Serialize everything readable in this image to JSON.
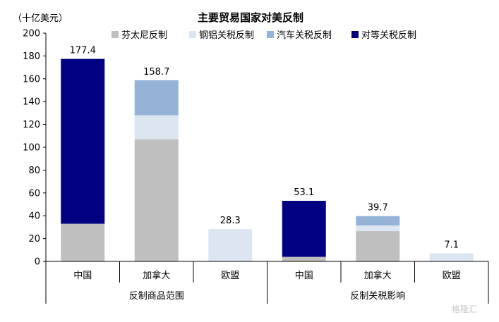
{
  "chart_data": {
    "type": "bar",
    "stacked": true,
    "title": "主要贸易国家对美反制",
    "ylabel": "（十亿美元）",
    "ylim": [
      0,
      200
    ],
    "yticks": [
      0,
      20,
      40,
      60,
      80,
      100,
      120,
      140,
      160,
      180,
      200
    ],
    "grid": false,
    "legend_position": "top",
    "groups": [
      "反制商品范围",
      "反制关税影响"
    ],
    "categories": [
      "中国",
      "加拿大",
      "欧盟",
      "中国",
      "加拿大",
      "欧盟"
    ],
    "group_of_category": [
      0,
      0,
      0,
      1,
      1,
      1
    ],
    "series": [
      {
        "name": "芬太尼反制",
        "color": "#BFBFBF",
        "values": [
          33.0,
          107.0,
          0,
          4.0,
          26.5,
          0
        ]
      },
      {
        "name": "钢铝关税反制",
        "color": "#DCE6F2",
        "values": [
          0,
          21.0,
          28.3,
          0,
          5.0,
          7.1
        ]
      },
      {
        "name": "汽车关税反制",
        "color": "#95B3D7",
        "values": [
          0,
          30.7,
          0,
          0,
          8.2,
          0
        ]
      },
      {
        "name": "对等关税反制",
        "color": "#000080",
        "values": [
          144.4,
          0,
          0,
          49.1,
          0,
          0
        ]
      }
    ],
    "totals": [
      "177.4",
      "158.7",
      "28.3",
      "53.1",
      "39.7",
      "7.1"
    ]
  },
  "watermark": "格隆汇"
}
